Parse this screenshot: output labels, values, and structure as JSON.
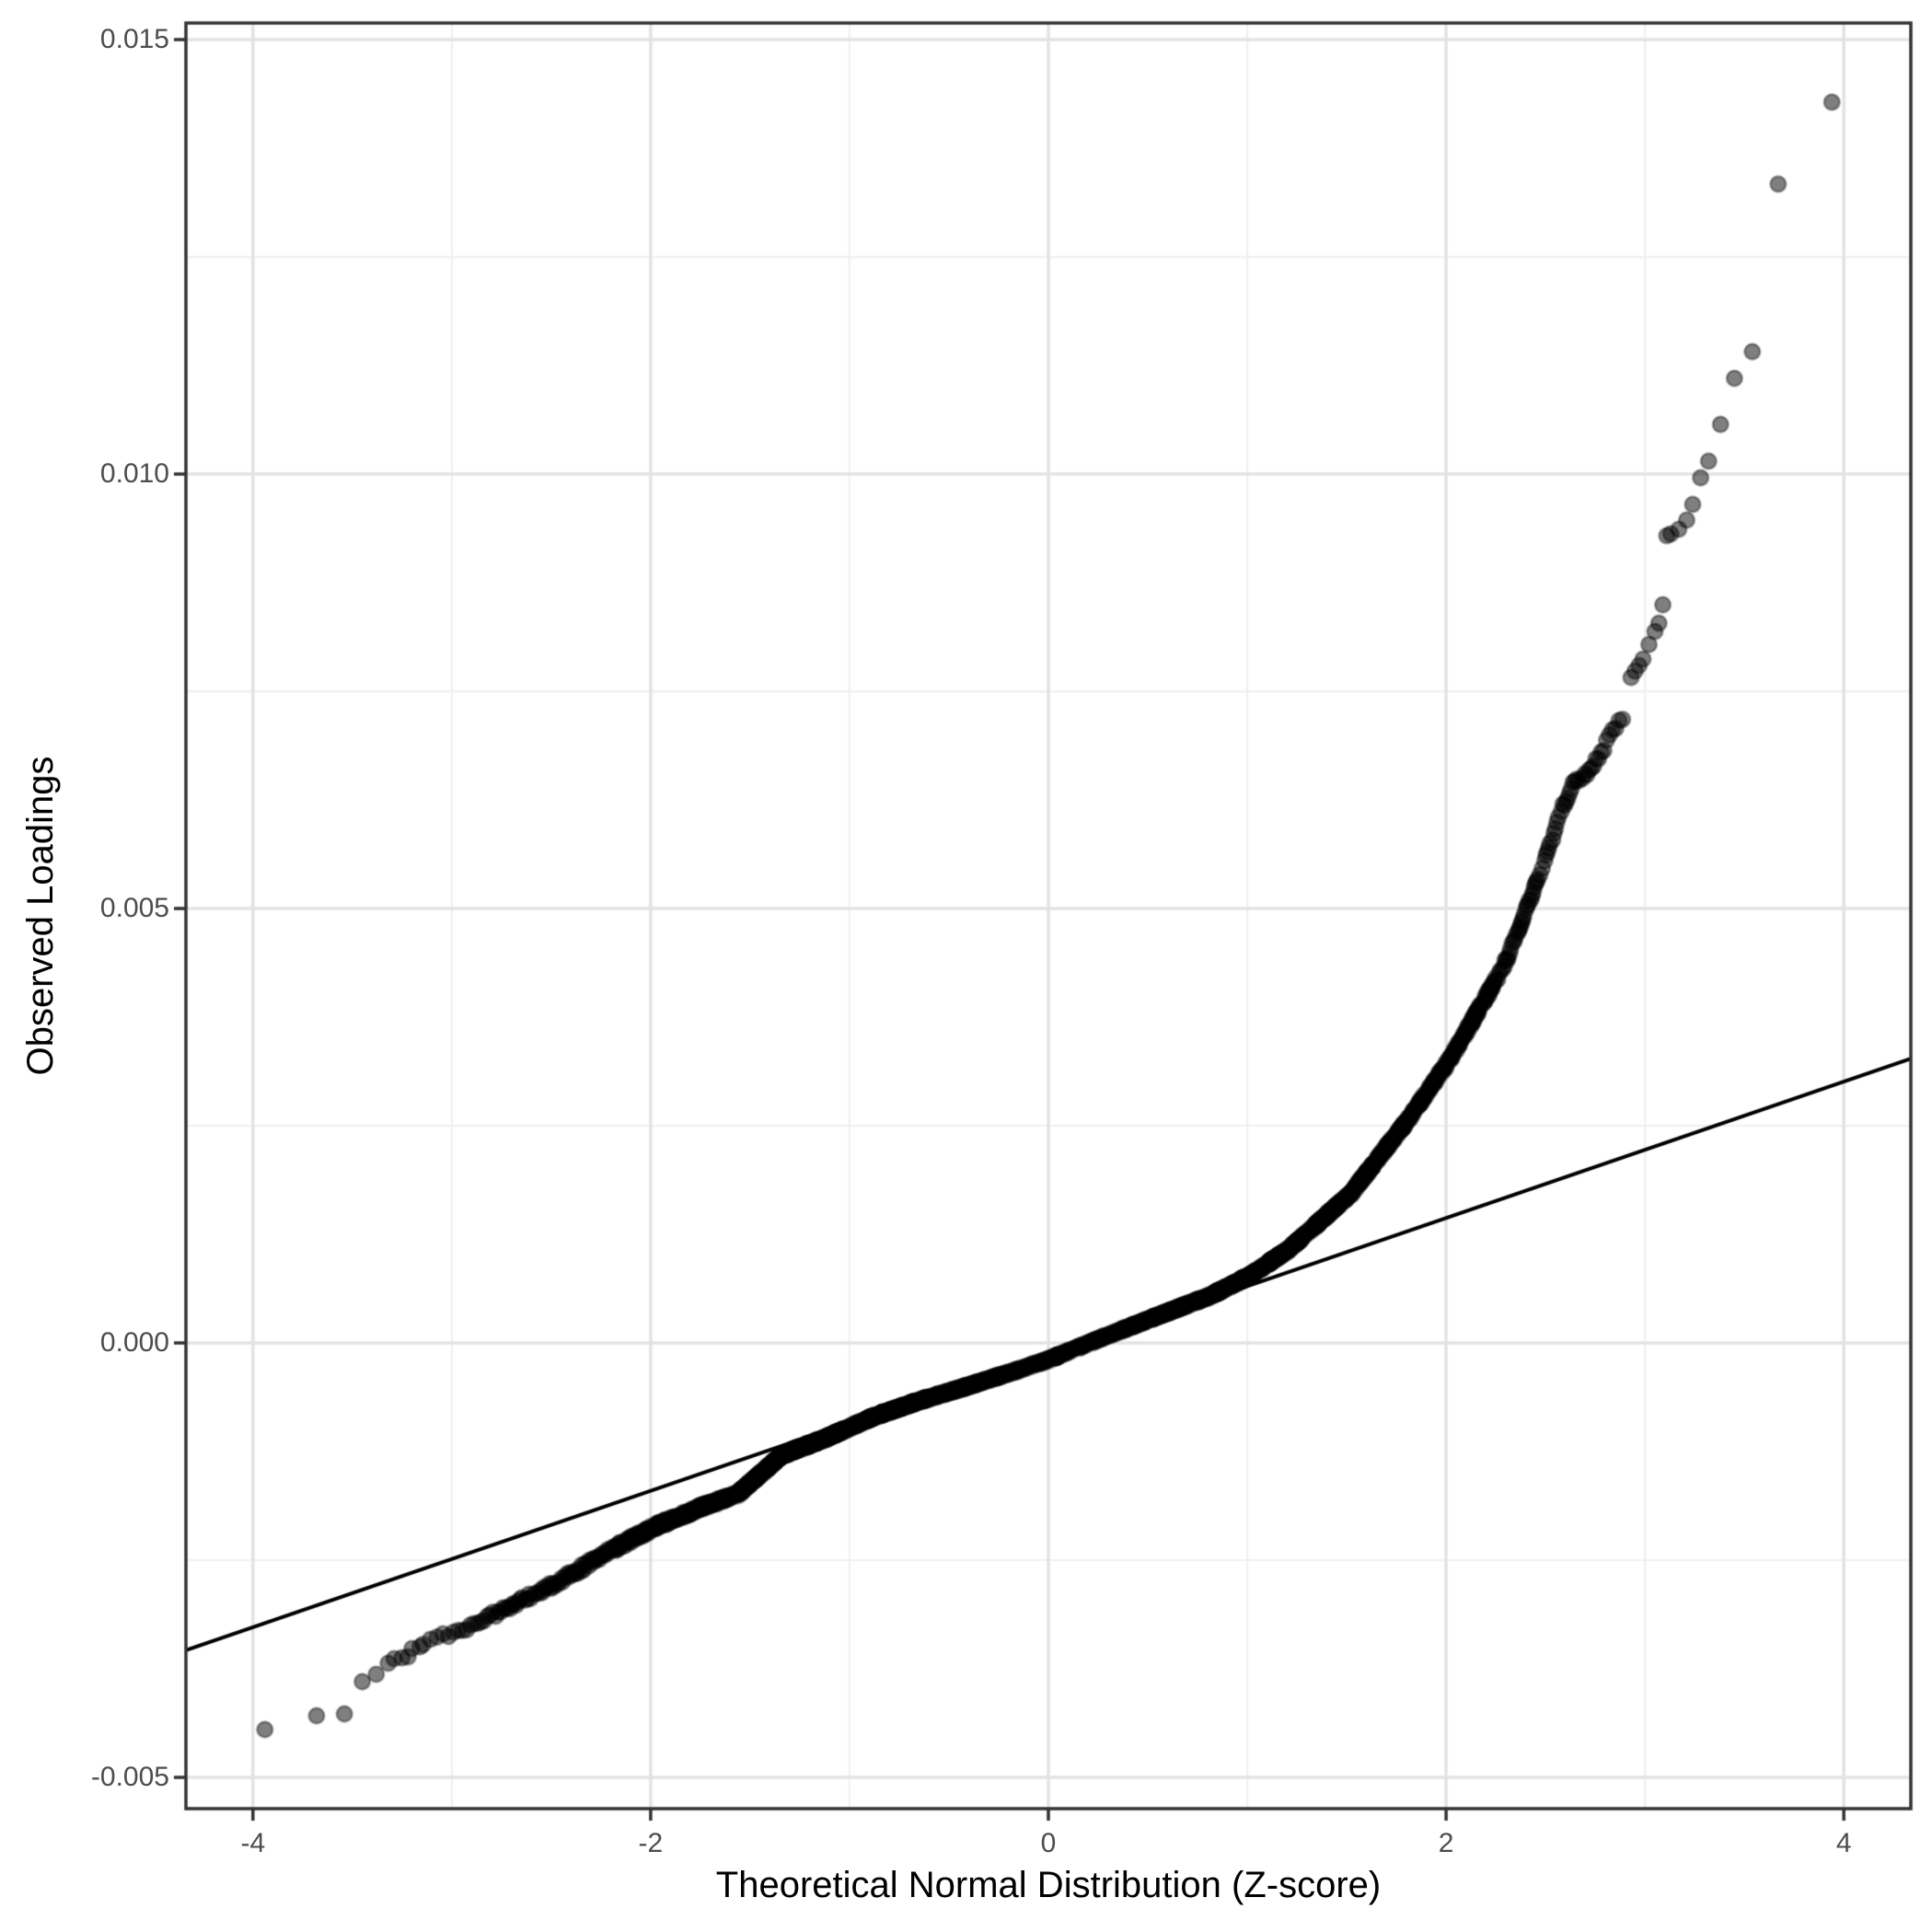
{
  "chart_data": {
    "type": "scatter",
    "subtype": "qq-plot",
    "title": "",
    "xlabel": "Theoretical Normal Distribution (Z-score)",
    "ylabel": "Observed Loadings",
    "xlim": [
      -4.337,
      4.337
    ],
    "ylim": [
      -0.00536,
      0.015191
    ],
    "x_ticks": [
      -4,
      -2,
      0,
      2,
      4
    ],
    "x_tick_labels": [
      "-4",
      "-2",
      "0",
      "2",
      "4"
    ],
    "x_minor_ticks": [
      -3,
      -1,
      1,
      3
    ],
    "y_ticks": [
      -0.005,
      0.0,
      0.005,
      0.01,
      0.015
    ],
    "y_tick_labels": [
      "-0.005",
      "0.000",
      "0.005",
      "0.010",
      "0.015"
    ],
    "y_minor_ticks": [
      -0.0025,
      0.0025,
      0.0075,
      0.0125
    ],
    "grid": "on",
    "legend": "none",
    "n_points_est": 9000,
    "reference_line": {
      "slope": 0.000785,
      "intercept": -0.000133
    },
    "curve_spine": [
      [
        -3.16,
        -0.003497
      ],
      [
        -3.1,
        -0.003423
      ],
      [
        -3.0,
        -0.003349
      ],
      [
        -2.85,
        -0.00319
      ],
      [
        -2.68,
        -0.003007
      ],
      [
        -2.45,
        -0.002732
      ],
      [
        -2.22,
        -0.002414
      ],
      [
        -1.99,
        -0.002128
      ],
      [
        -1.75,
        -0.001895
      ],
      [
        -1.56,
        -0.001736
      ],
      [
        -1.34,
        -0.00129
      ],
      [
        -1.11,
        -0.001085
      ],
      [
        -0.875,
        -0.000845
      ],
      [
        -0.64,
        -0.00066
      ],
      [
        -0.41,
        -0.0005
      ],
      [
        -0.18,
        -0.000332
      ],
      [
        0.0,
        -0.000193
      ],
      [
        0.25,
        4.2e-05
      ],
      [
        0.51,
        0.000275
      ],
      [
        0.82,
        0.00055
      ],
      [
        1.02,
        0.000783
      ],
      [
        1.21,
        0.00108
      ],
      [
        1.52,
        0.001715
      ],
      [
        1.82,
        0.002605
      ],
      [
        2.0,
        0.003198
      ],
      [
        2.13,
        0.003696
      ],
      [
        2.29,
        0.004332
      ],
      [
        2.4,
        0.004967
      ],
      [
        2.49,
        0.005497
      ],
      [
        2.58,
        0.006133
      ],
      [
        2.64,
        0.00645
      ],
      [
        2.71,
        0.006556
      ],
      [
        2.8,
        0.006874
      ],
      [
        2.85,
        0.007086
      ],
      [
        2.9,
        0.007245
      ]
    ],
    "lower_tail_points": [
      [
        -3.94,
        -0.00445
      ],
      [
        -3.68,
        -0.004291
      ],
      [
        -3.54,
        -0.00427
      ],
      [
        -3.45,
        -0.003899
      ],
      [
        -3.38,
        -0.003814
      ],
      [
        -3.32,
        -0.003687
      ],
      [
        -3.29,
        -0.003634
      ],
      [
        -3.25,
        -0.003624
      ],
      [
        -3.22,
        -0.003613
      ],
      [
        -3.2,
        -0.003518
      ],
      [
        -3.16,
        -0.003497
      ]
    ],
    "upper_tail_points": [
      [
        2.93,
        0.007658
      ],
      [
        2.95,
        0.007732
      ],
      [
        2.97,
        0.007796
      ],
      [
        2.99,
        0.00787
      ],
      [
        3.02,
        0.008039
      ],
      [
        3.05,
        0.008188
      ],
      [
        3.07,
        0.008283
      ],
      [
        3.09,
        0.008495
      ],
      [
        3.11,
        0.00929
      ],
      [
        3.13,
        0.009311
      ],
      [
        3.17,
        0.009364
      ],
      [
        3.21,
        0.00947
      ],
      [
        3.24,
        0.00965
      ],
      [
        3.28,
        0.009957
      ],
      [
        3.32,
        0.010148
      ],
      [
        3.38,
        0.010571
      ],
      [
        3.45,
        0.011101
      ],
      [
        3.54,
        0.011408
      ],
      [
        3.67,
        0.013337
      ],
      [
        3.94,
        0.01428
      ]
    ],
    "point_style": {
      "radius_px": 8.5,
      "fill": "rgba(0,0,0,0.50)",
      "ring": "rgba(0,0,0,0.30)"
    },
    "colors": {
      "background": "#FFFFFF",
      "panel_border": "#333333",
      "grid_major": "#E3E3E3",
      "grid_minor": "#F0F0F0",
      "tick_mark": "#333333",
      "tick_label": "#4D4D4D",
      "axis_title": "#000000",
      "reference_line": "#000000"
    }
  }
}
